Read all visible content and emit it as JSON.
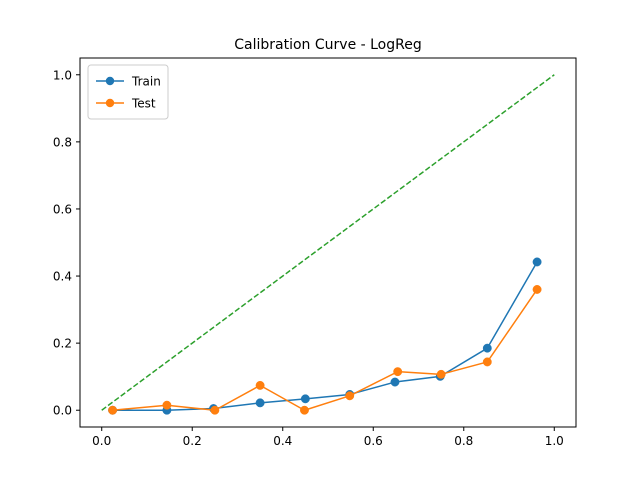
{
  "chart_data": {
    "type": "line",
    "title": "Calibration Curve - LogReg",
    "xlabel": "",
    "ylabel": "",
    "xlim": [
      -0.048,
      1.048
    ],
    "ylim": [
      -0.05,
      1.05
    ],
    "xticks": [
      0.0,
      0.2,
      0.4,
      0.6,
      0.8,
      1.0
    ],
    "yticks": [
      0.0,
      0.2,
      0.4,
      0.6,
      0.8,
      1.0
    ],
    "xtick_labels": [
      "0.0",
      "0.2",
      "0.4",
      "0.6",
      "0.8",
      "1.0"
    ],
    "ytick_labels": [
      "0.0",
      "0.2",
      "0.4",
      "0.6",
      "0.8",
      "1.0"
    ],
    "grid": false,
    "legend_position": "top-left",
    "series": [
      {
        "name": "Train",
        "color": "#1f77b4",
        "marker": "circle",
        "linestyle": "solid",
        "x": [
          0.024,
          0.144,
          0.247,
          0.35,
          0.45,
          0.548,
          0.648,
          0.748,
          0.852,
          0.962
        ],
        "y": [
          0.0,
          0.0,
          0.005,
          0.022,
          0.034,
          0.047,
          0.084,
          0.101,
          0.185,
          0.442
        ]
      },
      {
        "name": "Test",
        "color": "#ff7f0e",
        "marker": "circle",
        "linestyle": "solid",
        "x": [
          0.024,
          0.144,
          0.25,
          0.35,
          0.448,
          0.548,
          0.654,
          0.75,
          0.852,
          0.962
        ],
        "y": [
          0.0,
          0.015,
          0.0,
          0.074,
          0.0,
          0.043,
          0.115,
          0.107,
          0.144,
          0.36
        ]
      },
      {
        "name": "",
        "color": "#2ca02c",
        "marker": "none",
        "linestyle": "dashed",
        "x": [
          0.0,
          1.0
        ],
        "y": [
          0.0,
          1.0
        ]
      }
    ]
  }
}
